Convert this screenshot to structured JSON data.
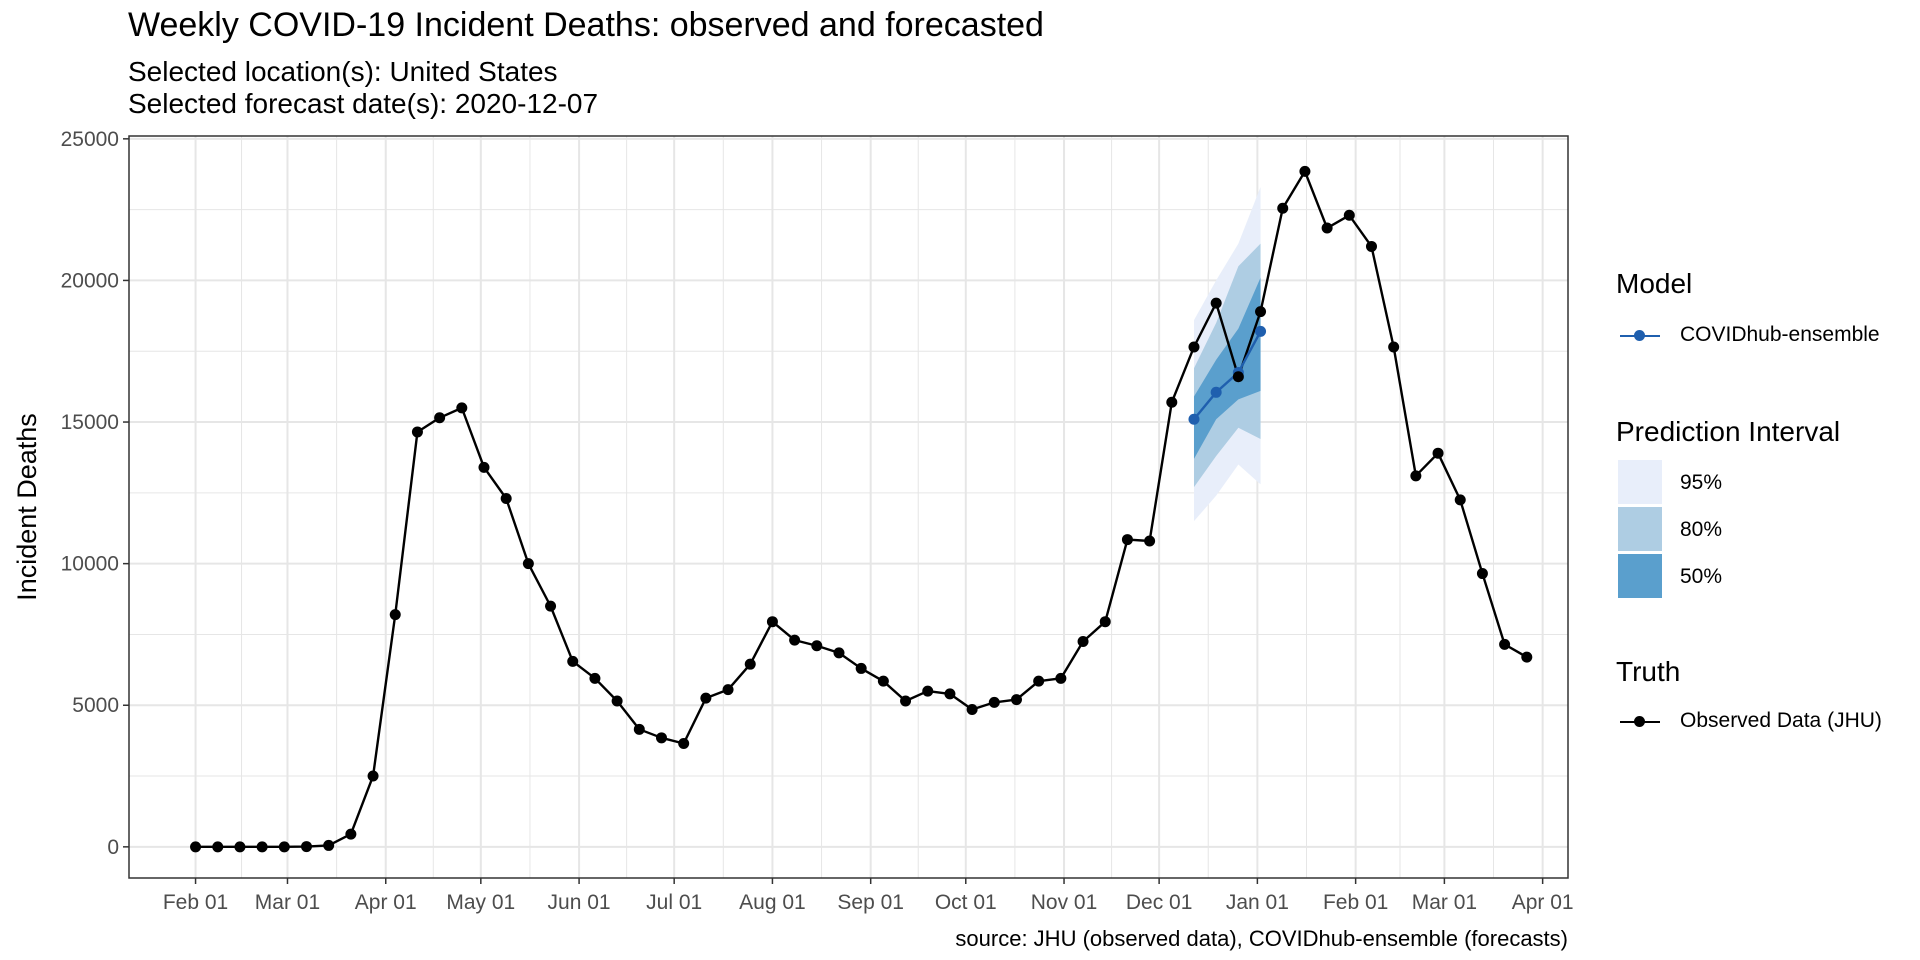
{
  "title": "Weekly COVID-19 Incident Deaths: observed and forecasted",
  "subtitle_location": "Selected location(s): United States",
  "subtitle_date": "Selected forecast date(s): 2020-12-07",
  "caption": "source: JHU (observed data), COVIDhub-ensemble (forecasts)",
  "legend": {
    "model_title": "Model",
    "model_label": "COVIDhub-ensemble",
    "interval_title": "Prediction Interval",
    "interval_labels": [
      "95%",
      "80%",
      "50%"
    ],
    "truth_title": "Truth",
    "truth_label": "Observed Data (JHU)"
  },
  "colors": {
    "truth": "#000000",
    "forecast": "#1f5fae",
    "pi95": "#e8eefa",
    "pi80": "#aecde3",
    "pi50": "#5a9fcd",
    "grid": "#e6e6e6",
    "panel_border": "#333333"
  },
  "chart_data": {
    "type": "line",
    "title": "Weekly COVID-19 Incident Deaths: observed and forecasted",
    "xlabel": "",
    "ylabel": "Incident Deaths",
    "ylim": [
      -1100,
      25100
    ],
    "xlim": [
      "2020-01-11",
      "2021-04-09"
    ],
    "y_ticks": [
      0,
      5000,
      10000,
      15000,
      20000,
      25000
    ],
    "x_ticks": [
      {
        "date": "2020-02-01",
        "label": "Feb 01"
      },
      {
        "date": "2020-03-01",
        "label": "Mar 01"
      },
      {
        "date": "2020-04-01",
        "label": "Apr 01"
      },
      {
        "date": "2020-05-01",
        "label": "May 01"
      },
      {
        "date": "2020-06-01",
        "label": "Jun 01"
      },
      {
        "date": "2020-07-01",
        "label": "Jul 01"
      },
      {
        "date": "2020-08-01",
        "label": "Aug 01"
      },
      {
        "date": "2020-09-01",
        "label": "Sep 01"
      },
      {
        "date": "2020-10-01",
        "label": "Oct 01"
      },
      {
        "date": "2020-11-01",
        "label": "Nov 01"
      },
      {
        "date": "2020-12-01",
        "label": "Dec 01"
      },
      {
        "date": "2021-01-01",
        "label": "Jan 01"
      },
      {
        "date": "2021-02-01",
        "label": "Feb 01"
      },
      {
        "date": "2021-03-01",
        "label": "Mar 01"
      },
      {
        "date": "2021-04-01",
        "label": "Apr 01"
      }
    ],
    "grid": true,
    "legend_position": "right",
    "series": [
      {
        "name": "Observed Data (JHU)",
        "x": [
          "2020-02-01",
          "2020-02-08",
          "2020-02-15",
          "2020-02-22",
          "2020-02-29",
          "2020-03-07",
          "2020-03-14",
          "2020-03-21",
          "2020-03-28",
          "2020-04-04",
          "2020-04-11",
          "2020-04-18",
          "2020-04-25",
          "2020-05-02",
          "2020-05-09",
          "2020-05-16",
          "2020-05-23",
          "2020-05-30",
          "2020-06-06",
          "2020-06-13",
          "2020-06-20",
          "2020-06-27",
          "2020-07-04",
          "2020-07-11",
          "2020-07-18",
          "2020-07-25",
          "2020-08-01",
          "2020-08-08",
          "2020-08-15",
          "2020-08-22",
          "2020-08-29",
          "2020-09-05",
          "2020-09-12",
          "2020-09-19",
          "2020-09-26",
          "2020-10-03",
          "2020-10-10",
          "2020-10-17",
          "2020-10-24",
          "2020-10-31",
          "2020-11-07",
          "2020-11-14",
          "2020-11-21",
          "2020-11-28",
          "2020-12-05",
          "2020-12-12",
          "2020-12-19",
          "2020-12-26",
          "2021-01-02",
          "2021-01-09",
          "2021-01-16",
          "2021-01-23",
          "2021-01-30",
          "2021-02-06",
          "2021-02-13",
          "2021-02-20",
          "2021-02-27",
          "2021-03-06",
          "2021-03-13",
          "2021-03-20",
          "2021-03-27"
        ],
        "values": [
          0,
          0,
          0,
          0,
          0,
          10,
          50,
          450,
          2500,
          8200,
          14650,
          15150,
          15500,
          13400,
          12300,
          10000,
          8500,
          6550,
          5950,
          5150,
          4150,
          3850,
          3650,
          5250,
          5550,
          6450,
          7950,
          7300,
          7100,
          6850,
          6300,
          5850,
          5150,
          5500,
          5400,
          4850,
          5100,
          5200,
          5850,
          5950,
          7250,
          7950,
          10850,
          10800,
          15700,
          17650,
          19200,
          16600,
          18900,
          22550,
          23850,
          21850,
          22300,
          21200,
          17650,
          13100,
          13900,
          12250,
          9650,
          7150,
          6700
        ]
      },
      {
        "name": "COVIDhub-ensemble",
        "x": [
          "2020-12-12",
          "2020-12-19",
          "2020-12-26",
          "2021-01-02"
        ],
        "values": [
          15100,
          16050,
          16750,
          18200
        ],
        "intervals": {
          "95": {
            "lower": [
              11500,
              12400,
              13500,
              12800
            ],
            "upper": [
              18600,
              20000,
              21300,
              23300
            ]
          },
          "80": {
            "lower": [
              12700,
              13800,
              14800,
              14400
            ],
            "upper": [
              16900,
              18500,
              20500,
              21300
            ]
          },
          "50": {
            "lower": [
              13700,
              15100,
              15800,
              16100
            ],
            "upper": [
              15900,
              17200,
              18300,
              20100
            ]
          }
        }
      }
    ]
  }
}
